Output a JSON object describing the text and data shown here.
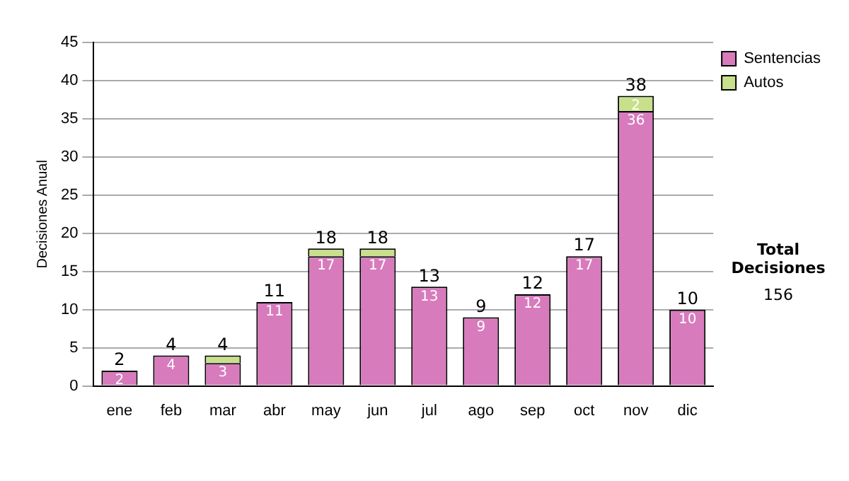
{
  "chart_data": {
    "type": "bar",
    "stacked": true,
    "ylabel": "Decisiones Anual",
    "categories": [
      "ene",
      "feb",
      "mar",
      "abr",
      "may",
      "jun",
      "jul",
      "ago",
      "sep",
      "oct",
      "nov",
      "dic"
    ],
    "series": [
      {
        "name": "Sentencias",
        "color": "#d77bbd",
        "values": [
          2,
          4,
          3,
          11,
          17,
          17,
          13,
          9,
          12,
          17,
          36,
          10
        ],
        "value_labels": [
          "2",
          "4",
          "3",
          "11",
          "17",
          "17",
          "13",
          "9",
          "12",
          "17",
          "36",
          "10"
        ]
      },
      {
        "name": "Autos",
        "color": "#c8e08c",
        "values": [
          0,
          0,
          1,
          0,
          1,
          1,
          0,
          0,
          0,
          0,
          2,
          0
        ],
        "value_labels": [
          null,
          null,
          null,
          null,
          null,
          null,
          null,
          null,
          null,
          null,
          "2",
          null
        ]
      }
    ],
    "totals": [
      "2",
      "4",
      "4",
      "11",
      "18",
      "18",
      "13",
      "9",
      "12",
      "17",
      "38",
      "10"
    ],
    "ylim": [
      0,
      45
    ],
    "yticks": [
      0,
      5,
      10,
      15,
      20,
      25,
      30,
      35,
      40,
      45
    ],
    "grid": "y",
    "legend": "right",
    "annotations": [
      "Total Decisiones",
      "156"
    ]
  }
}
